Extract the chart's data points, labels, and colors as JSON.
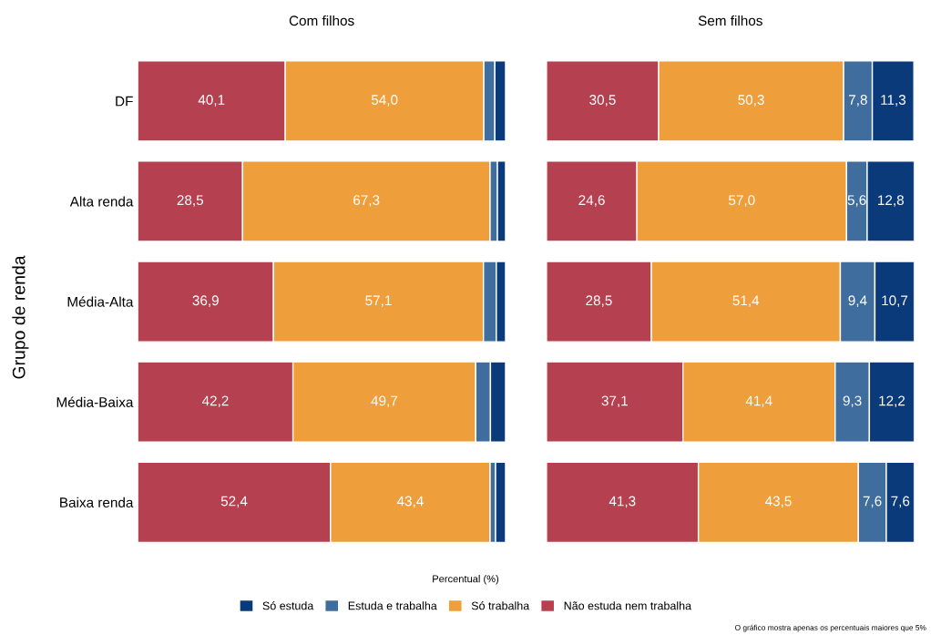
{
  "chart_data": [
    {
      "type": "bar",
      "orientation": "horizontal",
      "stacked": true,
      "title": "Com filhos",
      "xlabel": "Percentual (%)",
      "ylabel": "Grupo de renda",
      "tick_labels": "y",
      "legend": "bottom",
      "grid": false,
      "categories": [
        "DF",
        "Alta renda",
        "Média-Alta",
        "Média-Baixa",
        "Baixa renda"
      ],
      "series": [
        {
          "name": "Não estuda nem trabalha",
          "color": "#b5404f",
          "values": [
            40.1,
            28.5,
            36.9,
            42.2,
            52.4
          ],
          "value_labels": [
            "40,1",
            "28,5",
            "36,9",
            "42,2",
            "52,4"
          ]
        },
        {
          "name": "Só trabalha",
          "color": "#ee9f3c",
          "values": [
            54.0,
            67.3,
            57.1,
            49.7,
            43.4
          ],
          "value_labels": [
            "54,0",
            "67,3",
            "57,1",
            "49,7",
            "43,4"
          ]
        },
        {
          "name": "Estuda e trabalha",
          "color": "#3f6d9e",
          "values": [
            3.0,
            2.0,
            3.5,
            4.0,
            1.5
          ],
          "value_labels": [
            null,
            null,
            null,
            null,
            null
          ]
        },
        {
          "name": "Só estuda",
          "color": "#0b3a7a",
          "values": [
            2.9,
            2.2,
            2.5,
            4.1,
            2.7
          ],
          "value_labels": [
            null,
            null,
            null,
            null,
            null
          ]
        }
      ]
    },
    {
      "type": "bar",
      "orientation": "horizontal",
      "stacked": true,
      "title": "Sem filhos",
      "tick_labels": false,
      "grid": false,
      "annotations": [
        "O gráfico mostra apenas os percentuais maiores que 5%"
      ],
      "categories": [
        null,
        null,
        null,
        null,
        null
      ],
      "series": [
        {
          "color": "#b5404f",
          "values": [
            30.5,
            24.6,
            28.5,
            37.1,
            41.3
          ],
          "value_labels": [
            "30,5",
            "24,6",
            "28,5",
            "37,1",
            "41,3"
          ]
        },
        {
          "color": "#ee9f3c",
          "values": [
            50.3,
            57.0,
            51.4,
            41.4,
            43.5
          ],
          "value_labels": [
            "50,3",
            "57,0",
            "51,4",
            "41,4",
            "43,5"
          ]
        },
        {
          "color": "#3f6d9e",
          "values": [
            7.8,
            5.6,
            9.4,
            9.3,
            7.6
          ],
          "value_labels": [
            "7,8",
            "5,6",
            "9,4",
            "9,3",
            "7,6"
          ]
        },
        {
          "color": "#0b3a7a",
          "values": [
            11.3,
            12.8,
            10.7,
            12.2,
            7.6
          ],
          "value_labels": [
            "11,3",
            "12,8",
            "10,7",
            "12,2",
            "7,6"
          ]
        }
      ]
    }
  ]
}
